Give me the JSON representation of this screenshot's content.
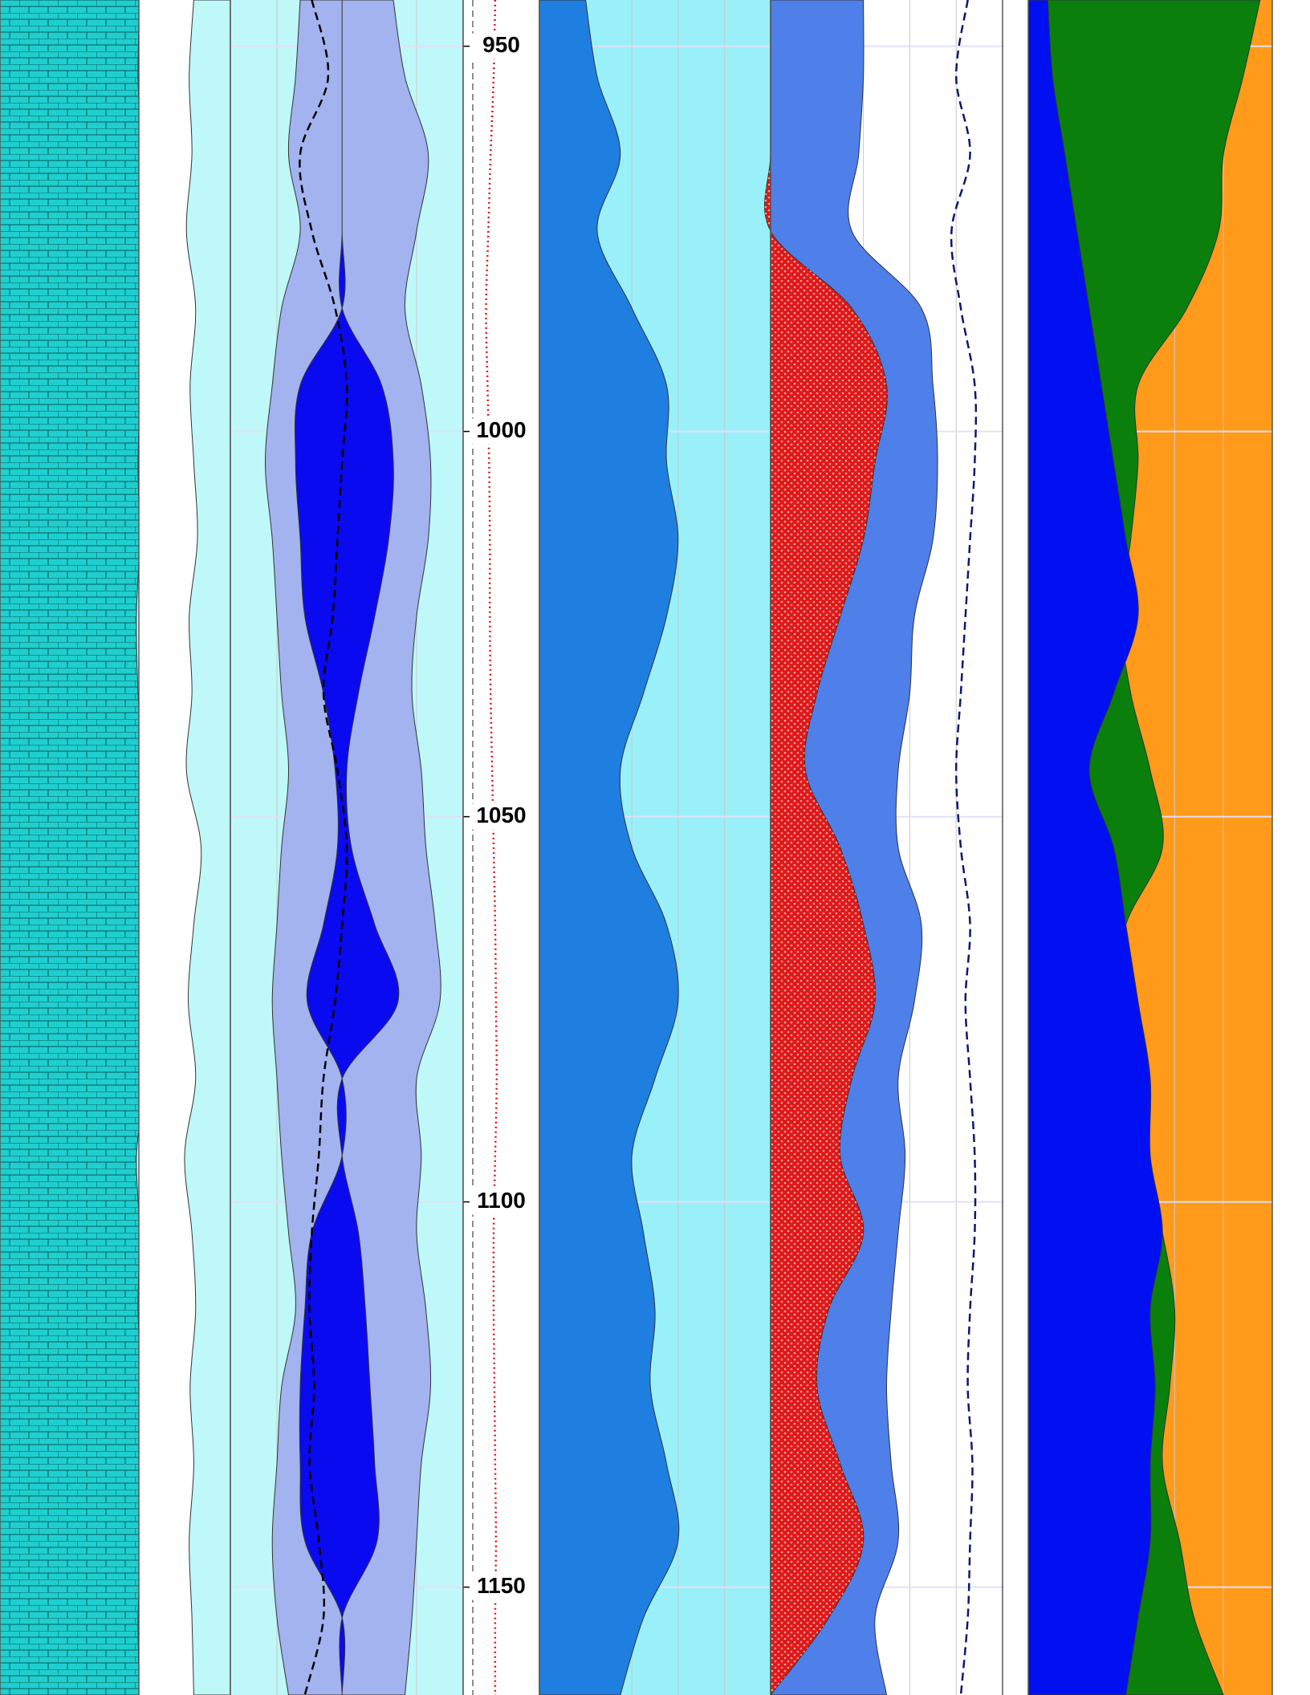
{
  "chart_data": {
    "type": "well-log",
    "depth": [
      944,
      954,
      964,
      974,
      984,
      994,
      1004,
      1014,
      1024,
      1034,
      1044,
      1054,
      1064,
      1074,
      1084,
      1094,
      1104,
      1114,
      1124,
      1134,
      1144,
      1154,
      1164
    ],
    "ylim": [
      944,
      1164
    ],
    "yticks": [
      950,
      1000,
      1050,
      1100,
      1150
    ],
    "grid": true,
    "tracks": [
      {
        "xlim": [
          0,
          100
        ],
        "background": "#ffffff",
        "series": [
          {
            "color": "#1fcfcf",
            "fill": "left",
            "pattern": "brick",
            "values": [
              92,
              91,
              93,
              92,
              97,
              93,
              91,
              92,
              90,
              91,
              94,
              96,
              93,
              92,
              95,
              90,
              92,
              91,
              93,
              92,
              93,
              91,
              92
            ]
          }
        ]
      },
      {
        "xlim": [
          0,
          100
        ],
        "background": "#ffffff",
        "series": [
          {
            "color": "#bff8f8",
            "fill": "right",
            "values": [
              60,
              55,
              58,
              52,
              62,
              56,
              60,
              64,
              55,
              58,
              52,
              68,
              60,
              54,
              62,
              50,
              58,
              62,
              56,
              60,
              55,
              58,
              60
            ]
          }
        ]
      },
      {
        "xlim": [
          0,
          100
        ],
        "background": "#bff8f8",
        "xticks": [
          20,
          40,
          60,
          80
        ],
        "series": [
          {
            "color": "#a3b3ef",
            "fill": "between",
            "values": [
              30,
              28,
              25,
              30,
              22,
              18,
              15,
              18,
              20,
              22,
              25,
              22,
              20,
              18,
              20,
              22,
              25,
              28,
              22,
              20,
              18,
              20,
              25
            ],
            "values2": [
              70,
              75,
              85,
              80,
              75,
              82,
              86,
              85,
              80,
              78,
              82,
              84,
              88,
              90,
              80,
              82,
              80,
              84,
              86,
              82,
              80,
              78,
              75
            ]
          },
          {
            "color": "#0a0af0",
            "fill": "between",
            "values": [
              48,
              48,
              48,
              48,
              48,
              30,
              28,
              30,
              32,
              40,
              45,
              46,
              40,
              33,
              48,
              48,
              35,
              32,
              30,
              30,
              32,
              48,
              48
            ],
            "values2": [
              48,
              48,
              48,
              48,
              48,
              65,
              70,
              68,
              62,
              55,
              50,
              52,
              62,
              72,
              48,
              48,
              55,
              58,
              60,
              62,
              63,
              48,
              48
            ]
          },
          {
            "color": "#000000",
            "fill": "none",
            "dash": "dashed",
            "values": [
              35,
              42,
              30,
              35,
              45,
              50,
              48,
              46,
              44,
              40,
              46,
              50,
              48,
              45,
              40,
              38,
              35,
              34,
              36,
              34,
              38,
              40,
              32
            ]
          }
        ]
      },
      {
        "xlim": [
          0,
          100
        ],
        "background": "#ffffff",
        "depth_labels": true,
        "series": [
          {
            "color": "#e01010",
            "fill": "none",
            "dash": "dotted",
            "values": [
              42,
              40,
              36,
              33,
              30,
              32,
              34,
              35,
              35,
              36,
              38,
              40,
              42,
              43,
              44,
              42,
              40,
              40,
              41,
              42,
              43,
              42,
              42
            ]
          }
        ]
      },
      {
        "xlim": [
          0,
          100
        ],
        "background": "#99f0f8",
        "xticks": [
          20,
          40,
          60,
          80
        ],
        "series": [
          {
            "color": "#1e7fe0",
            "fill": "left",
            "values": [
              20,
              25,
              35,
              25,
              40,
              55,
              55,
              60,
              55,
              45,
              35,
              40,
              55,
              60,
              50,
              40,
              45,
              50,
              48,
              55,
              60,
              45,
              35
            ]
          }
        ]
      },
      {
        "xlim": [
          0,
          100
        ],
        "background": "#ffffff",
        "xticks": [
          20,
          40,
          60,
          80
        ],
        "series": [
          {
            "color": "#4f7fe8",
            "fill": "left",
            "values": [
              40,
              40,
              38,
              35,
              65,
              70,
              72,
              70,
              62,
              60,
              55,
              55,
              65,
              62,
              55,
              58,
              55,
              52,
              50,
              52,
              55,
              45,
              50
            ]
          },
          {
            "color": "#e01818",
            "fill": "left",
            "pattern": "dots",
            "values": [
              0,
              0,
              0,
              0,
              35,
              50,
              45,
              40,
              30,
              20,
              15,
              30,
              40,
              45,
              35,
              30,
              40,
              25,
              20,
              30,
              40,
              25,
              0
            ]
          },
          {
            "color": "#0a1a6a",
            "fill": "none",
            "dash": "dashed",
            "values": [
              85,
              80,
              86,
              78,
              82,
              88,
              88,
              86,
              84,
              82,
              80,
              82,
              86,
              84,
              86,
              88,
              88,
              86,
              85,
              87,
              86,
              85,
              82
            ]
          }
        ]
      },
      {
        "xlim": [
          0,
          100
        ],
        "background": "#ff9a1a",
        "xticks": [
          20,
          40,
          60,
          80
        ],
        "series": [
          {
            "color": "#0b7f0b",
            "fill": "left",
            "values": [
              95,
              88,
              80,
              78,
              65,
              45,
              45,
              42,
              38,
              42,
              50,
              55,
              40,
              35,
              45,
              48,
              55,
              60,
              58,
              55,
              62,
              68,
              80
            ]
          },
          {
            "color": "#0010f0",
            "fill": "left",
            "values": [
              8,
              10,
              15,
              20,
              25,
              30,
              35,
              40,
              45,
              35,
              25,
              35,
              40,
              45,
              50,
              50,
              55,
              50,
              52,
              50,
              50,
              45,
              40
            ]
          }
        ]
      }
    ]
  }
}
